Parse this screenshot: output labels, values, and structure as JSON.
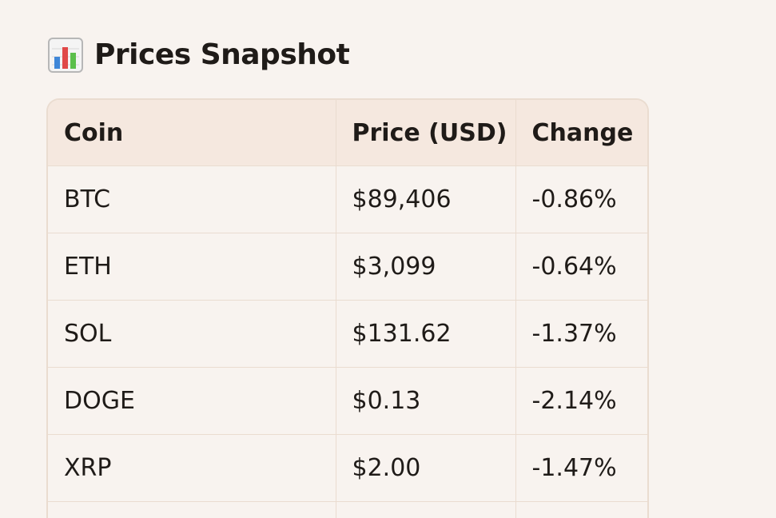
{
  "heading": {
    "icon": "bar-chart-icon",
    "title": "Prices Snapshot"
  },
  "table": {
    "columns": [
      "Coin",
      "Price (USD)",
      "Change"
    ],
    "rows": [
      {
        "coin": "BTC",
        "price": "$89,406",
        "change": "-0.86%"
      },
      {
        "coin": "ETH",
        "price": "$3,099",
        "change": "-0.64%"
      },
      {
        "coin": "SOL",
        "price": "$131.62",
        "change": "-1.37%"
      },
      {
        "coin": "DOGE",
        "price": "$0.13",
        "change": "-2.14%"
      },
      {
        "coin": "XRP",
        "price": "$2.00",
        "change": "-1.47%"
      }
    ]
  },
  "colors": {
    "background": "#f8f3ef",
    "header_background": "#f5e8df",
    "border": "#eadcd0",
    "text": "#1f1b18"
  }
}
